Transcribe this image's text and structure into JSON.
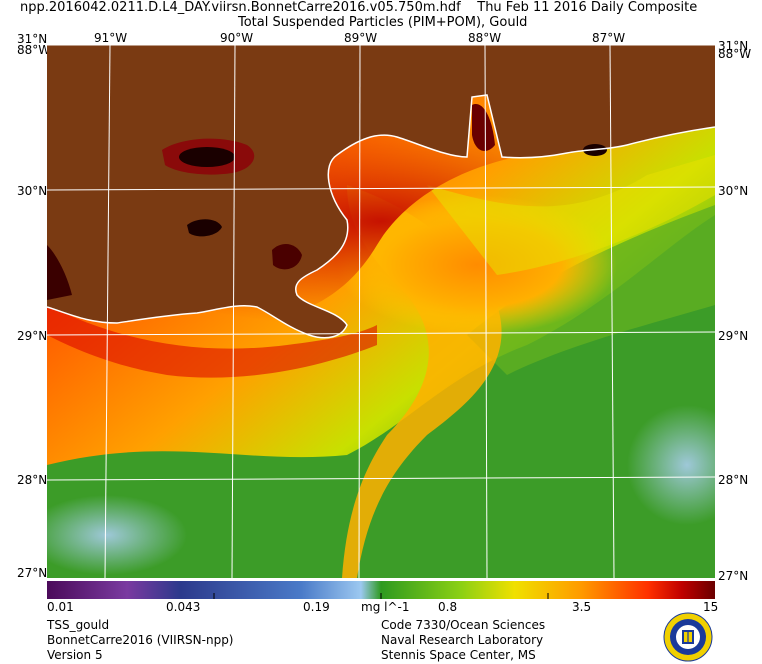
{
  "header": {
    "filename": "npp.2016042.0211.D.L4_DAY.viirsn.BonnetCarre2016.v05.750m.hdf",
    "date": "Thu Feb 11 2016 Daily Composite",
    "product": "Total Suspended Particles (PIM+POM), Gould"
  },
  "axes": {
    "lat_left": [
      "31°N",
      "30°N",
      "29°N",
      "28°N",
      "27°N"
    ],
    "lat_right": [
      "31°N",
      "30°N",
      "29°N",
      "28°N",
      "27°N"
    ],
    "lat_left_overlap": "88°W",
    "lat_right_overlap": "88°W",
    "lon_top": [
      "91°W",
      "90°W",
      "89°W",
      "88°W",
      "87°W"
    ]
  },
  "colorbar": {
    "ticks": [
      "0.01",
      "0.043",
      "0.19",
      "0.8",
      "3.5",
      "15"
    ],
    "units": "mg l^-1",
    "scale": "log",
    "colors": [
      "#4b0a5a",
      "#7a3aa0",
      "#2c3a8c",
      "#4a7ac8",
      "#9cc8f0",
      "#2e9a20",
      "#8cd014",
      "#f0e000",
      "#ff9a00",
      "#ff3000",
      "#c00000",
      "#6a0000"
    ]
  },
  "footer": {
    "left": [
      "TSS_gould",
      "BonnetCarre2016 (VIIRSN-npp)",
      "Version 5"
    ],
    "right": [
      "Code 7330/Ocean Sciences",
      "Naval Research Laboratory",
      "Stennis Space Center, MS"
    ]
  },
  "map": {
    "land_color": "#7a3a12",
    "grid_color": "#ffffff"
  }
}
